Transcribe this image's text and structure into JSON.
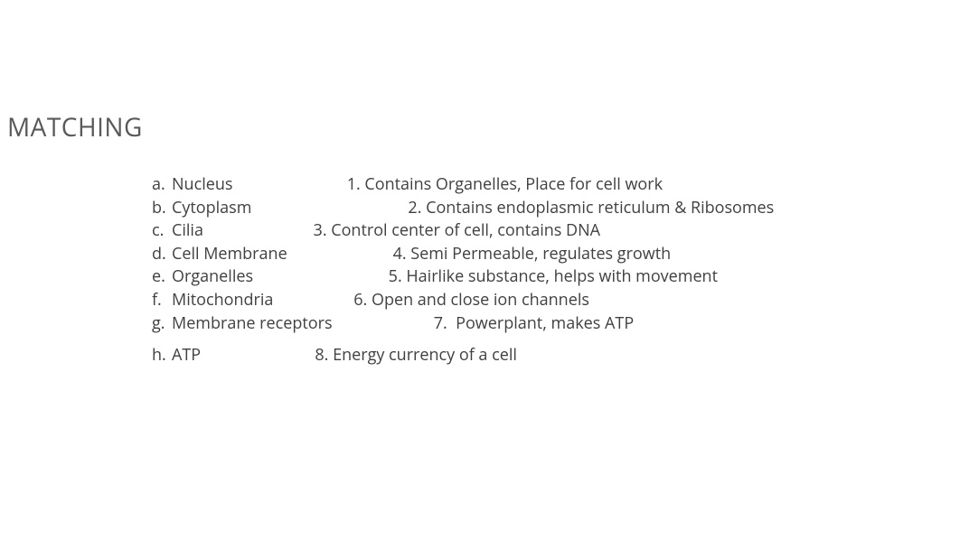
{
  "title": "MATCHING",
  "colors": {
    "title": "#595959",
    "body": "#404040",
    "background": "#ffffff"
  },
  "typography": {
    "title_fontsize": 28,
    "body_fontsize": 18,
    "line_height": 25.6,
    "font_family": "Segoe UI / Open Sans / Helvetica"
  },
  "items": [
    {
      "marker": "a.",
      "rest": "Nucleus                           1. Contains Organelles, Place for cell work"
    },
    {
      "marker": "b.",
      "rest": "Cytoplasm                                     2. Contains endoplasmic reticulum & Ribosomes"
    },
    {
      "marker": "c.",
      "rest": "Cilia                          3. Control center of cell, contains DNA"
    },
    {
      "marker": "d.",
      "rest": "Cell Membrane                         4. Semi Permeable, regulates growth"
    },
    {
      "marker": "e.",
      "rest": "Organelles                                5. Hairlike substance, helps with movement"
    },
    {
      "marker": "f.",
      "rest": "Mitochondria                   6. Open and close ion channels"
    },
    {
      "marker": "g.",
      "rest": "Membrane receptors                        7.  Powerplant, makes ATP"
    }
  ],
  "last_item": {
    "marker": "h.",
    "rest": "ATP                           8. Energy currency of a cell"
  }
}
